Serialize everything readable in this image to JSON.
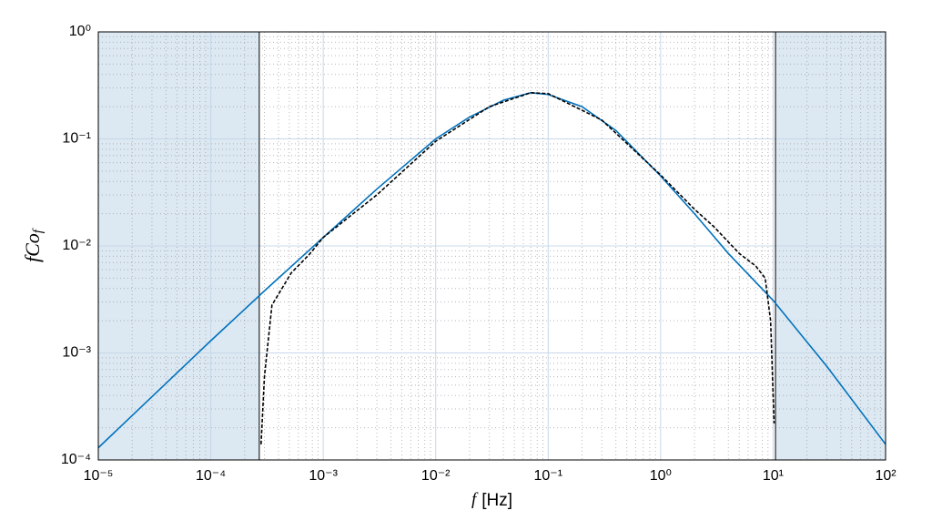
{
  "chart_data": {
    "type": "line",
    "xlabel": {
      "main": "f",
      "unit": "[Hz]"
    },
    "ylabel": {
      "main": "fCo",
      "sub": "f"
    },
    "log_x": true,
    "log_y": true,
    "grid": true,
    "minor_grid": true,
    "xlim": [
      1e-05,
      100
    ],
    "ylim": [
      0.0001,
      1
    ],
    "xticks": [
      {
        "value": 1e-05,
        "label": "10⁻⁵"
      },
      {
        "value": 0.0001,
        "label": "10⁻⁴"
      },
      {
        "value": 0.001,
        "label": "10⁻³"
      },
      {
        "value": 0.01,
        "label": "10⁻²"
      },
      {
        "value": 0.1,
        "label": "10⁻¹"
      },
      {
        "value": 1,
        "label": "10⁰"
      },
      {
        "value": 10,
        "label": "10¹"
      },
      {
        "value": 100,
        "label": "10²"
      }
    ],
    "yticks": [
      {
        "value": 0.0001,
        "label": "10⁻⁴"
      },
      {
        "value": 0.001,
        "label": "10⁻³"
      },
      {
        "value": 0.01,
        "label": "10⁻²"
      },
      {
        "value": 0.1,
        "label": "10⁻¹"
      },
      {
        "value": 1,
        "label": "10⁰"
      }
    ],
    "bands": [
      {
        "from": 1e-05,
        "to": 0.00027
      },
      {
        "from": 10.5,
        "to": 100
      }
    ],
    "band_color": "#dce8f2",
    "series": [
      {
        "color": "#0072bd",
        "dash": false,
        "x": [
          1e-05,
          3e-05,
          0.0001,
          0.0003,
          0.001,
          0.003,
          0.01,
          0.02,
          0.04,
          0.07,
          0.1,
          0.2,
          0.4,
          1,
          2,
          4,
          10,
          30,
          100
        ],
        "values": [
          0.00013,
          0.00039,
          0.0013,
          0.0038,
          0.012,
          0.034,
          0.1,
          0.16,
          0.23,
          0.27,
          0.26,
          0.2,
          0.12,
          0.045,
          0.02,
          0.0085,
          0.0031,
          0.00075,
          0.00014
        ]
      },
      {
        "color": "#000000",
        "dash": true,
        "x": [
          0.00028,
          0.0003,
          0.00035,
          0.00052,
          0.00075,
          0.001,
          0.003,
          0.01,
          0.03,
          0.07,
          0.1,
          0.3,
          1,
          2,
          3,
          5,
          7,
          8.5,
          9.5,
          10.2
        ],
        "values": [
          0.00014,
          0.0006,
          0.0028,
          0.0056,
          0.0083,
          0.012,
          0.03,
          0.095,
          0.2,
          0.27,
          0.265,
          0.15,
          0.046,
          0.022,
          0.015,
          0.0085,
          0.0065,
          0.005,
          0.002,
          0.00022
        ]
      }
    ]
  }
}
